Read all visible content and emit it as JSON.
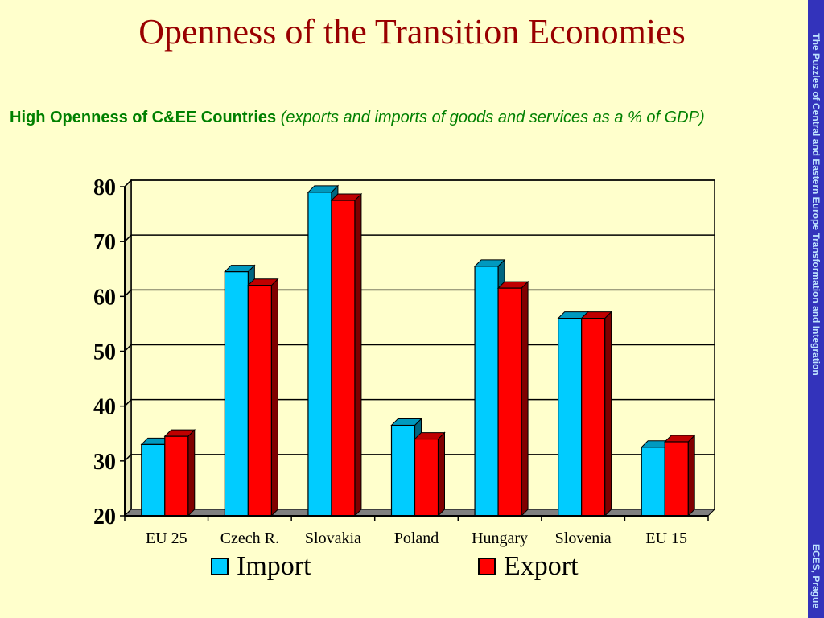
{
  "slide": {
    "title": "Openness of the Transition Economies",
    "subtitle_bold": "High Openness of C&EE Countries",
    "subtitle_italic": "(exports and imports of goods and services as a % of GDP)",
    "sidebar_top": "The Puzzles of Central and Eastern Europe Transformation and Integration",
    "sidebar_bottom": "ECES, Prague"
  },
  "colors": {
    "background": "#ffffcc",
    "import": "#00ccff",
    "export": "#ff0000",
    "title": "#990000",
    "subtitle": "#008000",
    "sidebar": "#3333bb"
  },
  "chart_data": {
    "type": "bar",
    "style": "3d-clustered",
    "categories": [
      "EU 25",
      "Czech R.",
      "Slovakia",
      "Poland",
      "Hungary",
      "Slovenia",
      "EU 15"
    ],
    "series": [
      {
        "name": "Import",
        "values": [
          33,
          64.5,
          79,
          36.5,
          65.5,
          56,
          32.5
        ]
      },
      {
        "name": "Export",
        "values": [
          34.5,
          62,
          77.5,
          34,
          61.5,
          56,
          33.5
        ]
      }
    ],
    "ylim": [
      20,
      80
    ],
    "yticks": [
      "20",
      "30",
      "40",
      "50",
      "60",
      "70",
      "80"
    ],
    "grid": true,
    "legend": "bottom"
  },
  "legend": {
    "import": "Import",
    "export": "Export"
  }
}
